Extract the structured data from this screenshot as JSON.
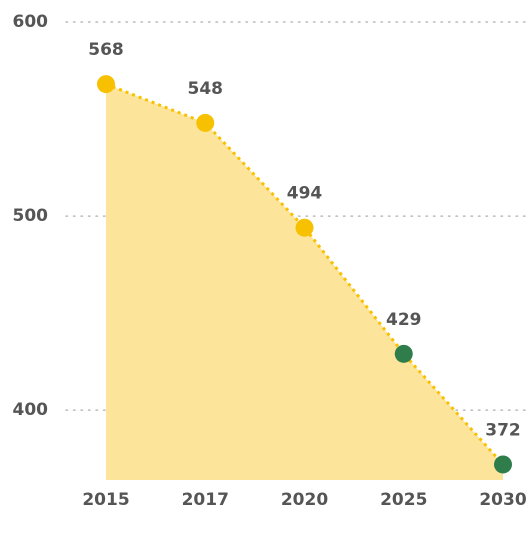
{
  "chart_data": {
    "type": "area",
    "categories": [
      "2015",
      "2017",
      "2020",
      "2025",
      "2030"
    ],
    "values": [
      568,
      548,
      494,
      429,
      372
    ],
    "point_colors": [
      "#f7c102",
      "#f7c102",
      "#f7c102",
      "#2e7d4a",
      "#2e7d4a"
    ],
    "color": "#f7c102",
    "area_color": "#fde49b",
    "ylim": [
      364,
      600
    ],
    "yticks": [
      400,
      500,
      600
    ],
    "grid": true
  }
}
